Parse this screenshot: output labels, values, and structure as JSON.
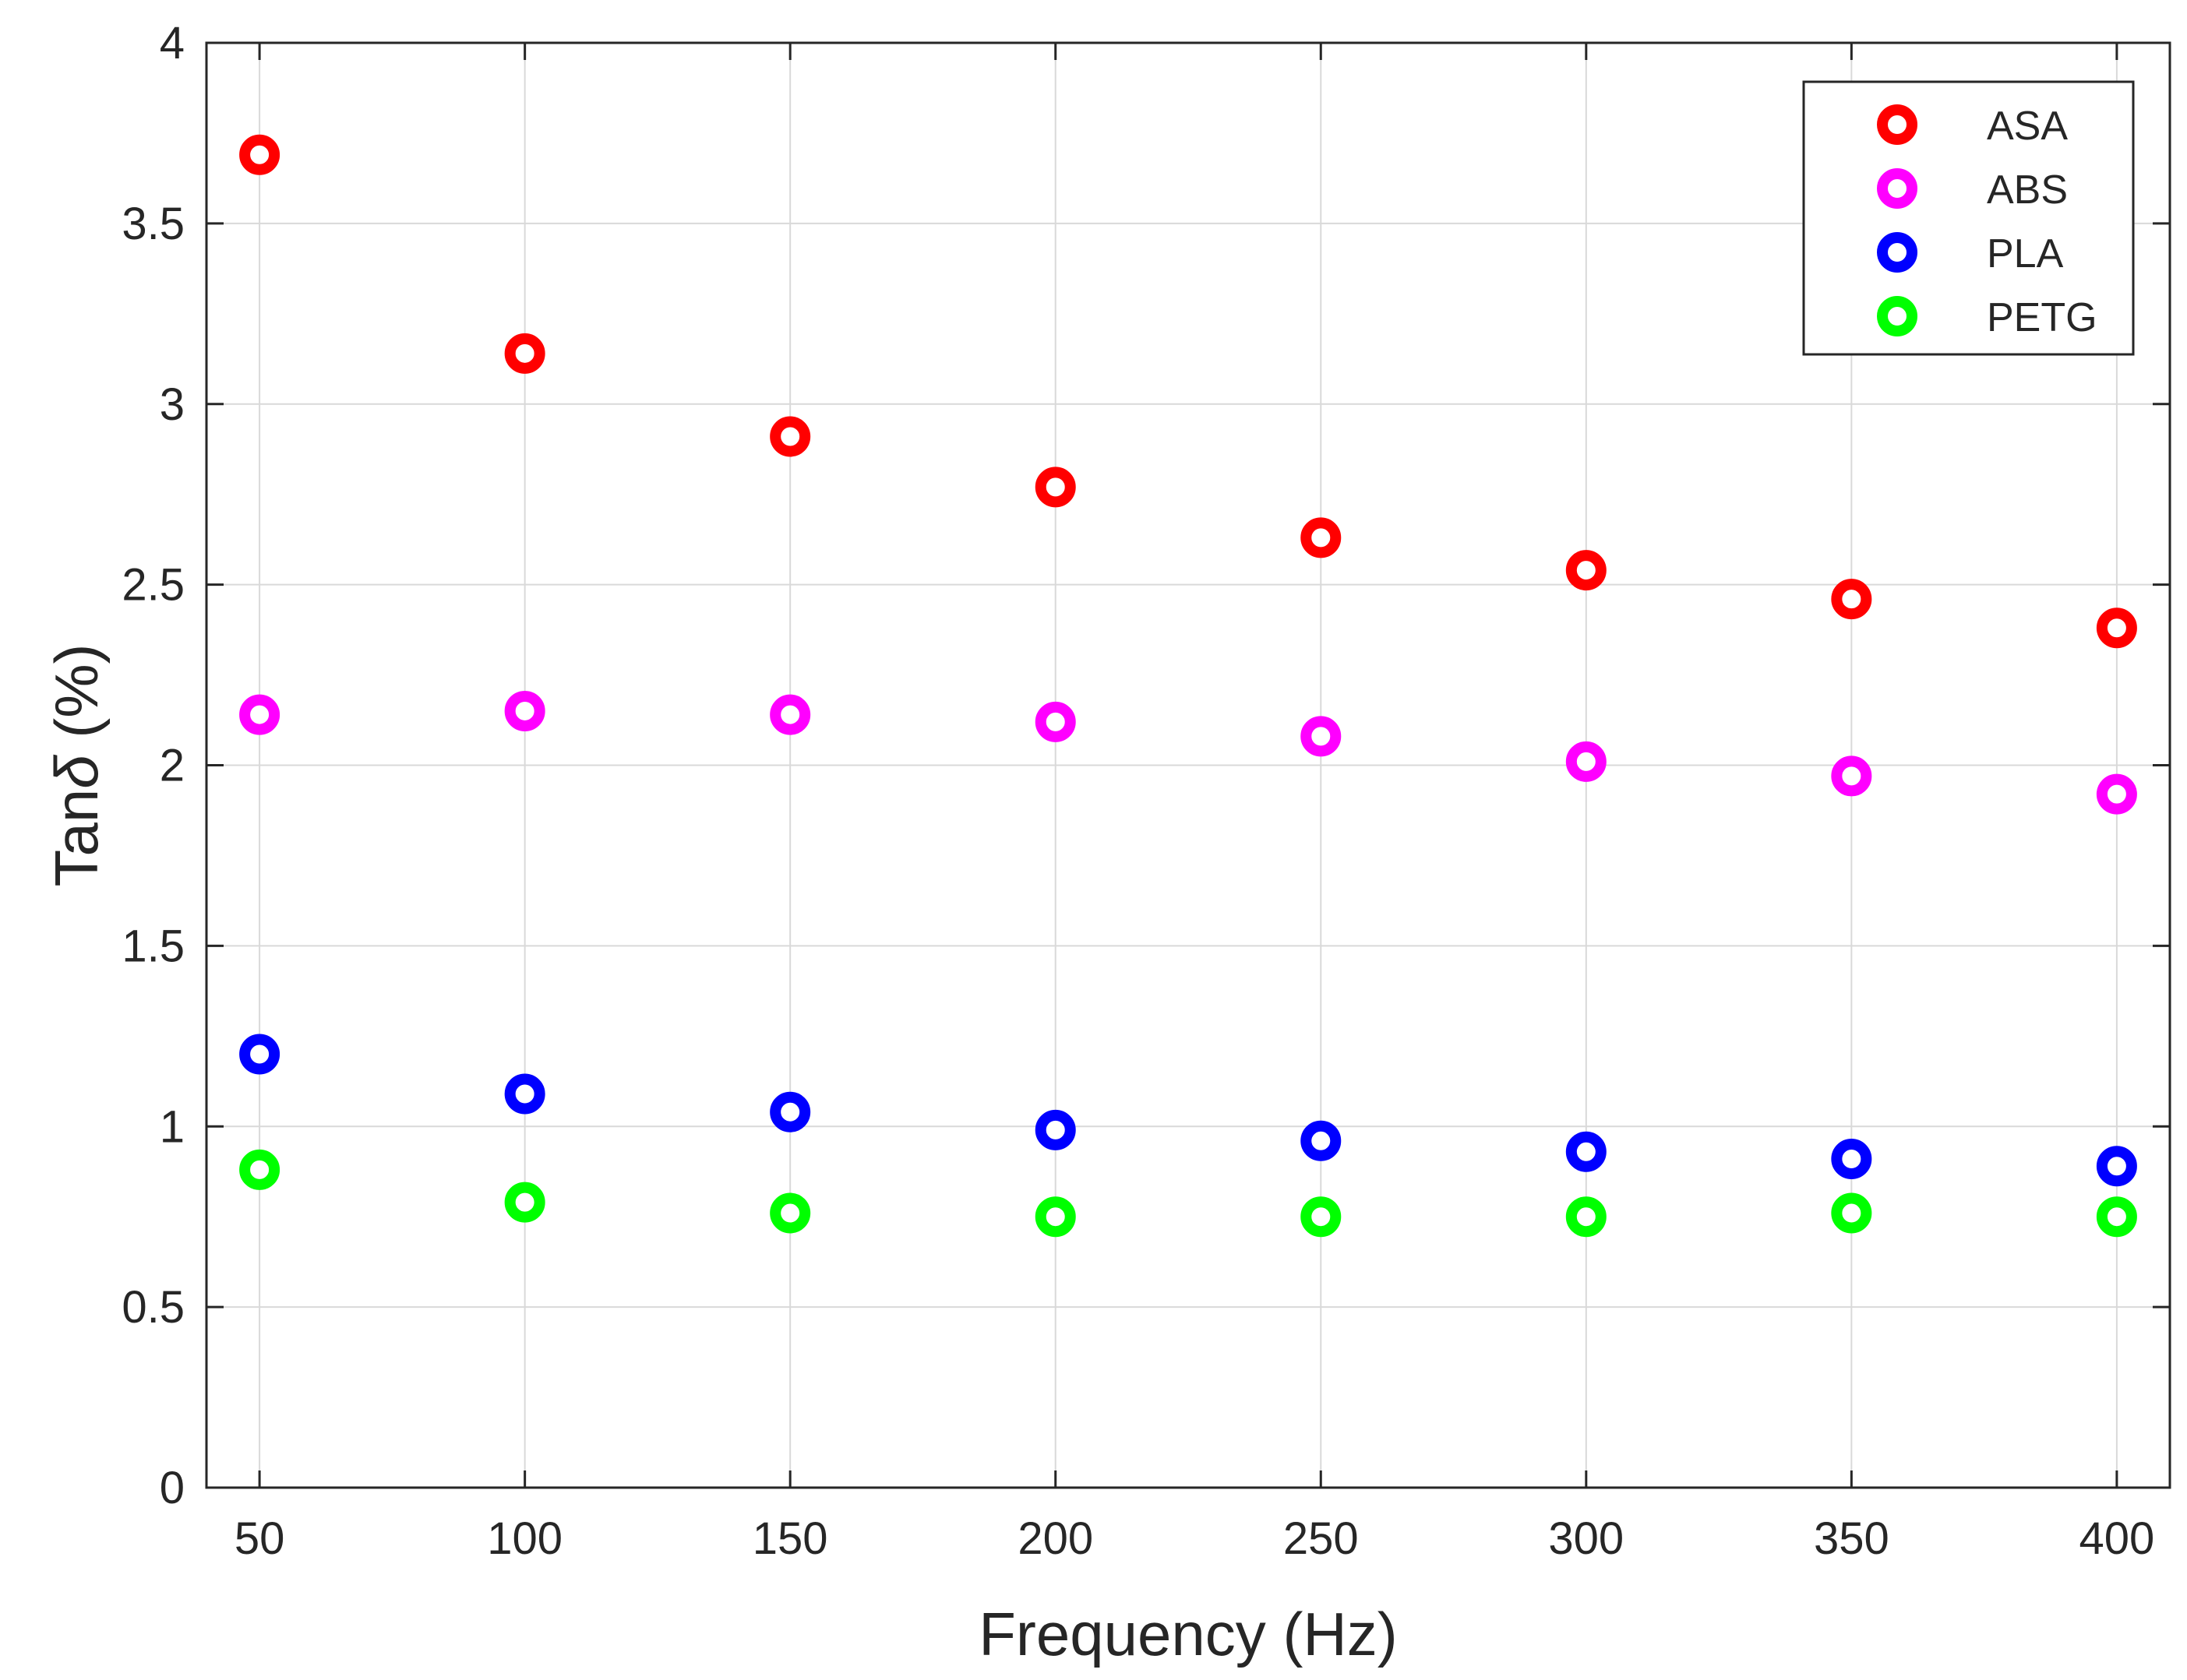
{
  "chart_data": {
    "type": "scatter",
    "title": "",
    "xlabel": "Frequency (Hz)",
    "ylabel_prefix": "Tan",
    "ylabel_symbol": "δ",
    "ylabel_suffix": " (%)",
    "x": [
      50,
      100,
      150,
      200,
      250,
      300,
      350,
      400
    ],
    "x_tick_labels": [
      "50",
      "100",
      "150",
      "200",
      "250",
      "300",
      "350",
      "400"
    ],
    "y_ticks": [
      0,
      0.5,
      1,
      1.5,
      2,
      2.5,
      3,
      3.5,
      4
    ],
    "y_tick_labels": [
      "0",
      "0.5",
      "1",
      "1.5",
      "2",
      "2.5",
      "3",
      "3.5",
      "4"
    ],
    "xlim": [
      40,
      410
    ],
    "ylim": [
      0,
      4
    ],
    "grid": true,
    "legend_position": "top-right",
    "marker": "open-circle",
    "series": [
      {
        "name": "ASA",
        "color": "#ff0000",
        "values": [
          3.69,
          3.14,
          2.91,
          2.77,
          2.63,
          2.54,
          2.46,
          2.38
        ]
      },
      {
        "name": "ABS",
        "color": "#ff00ff",
        "values": [
          2.14,
          2.15,
          2.14,
          2.12,
          2.08,
          2.01,
          1.97,
          1.92
        ]
      },
      {
        "name": "PLA",
        "color": "#0000ff",
        "values": [
          1.2,
          1.09,
          1.04,
          0.99,
          0.96,
          0.93,
          0.91,
          0.89
        ]
      },
      {
        "name": "PETG",
        "color": "#00ff00",
        "values": [
          0.88,
          0.79,
          0.76,
          0.75,
          0.75,
          0.75,
          0.76,
          0.75
        ]
      }
    ]
  }
}
